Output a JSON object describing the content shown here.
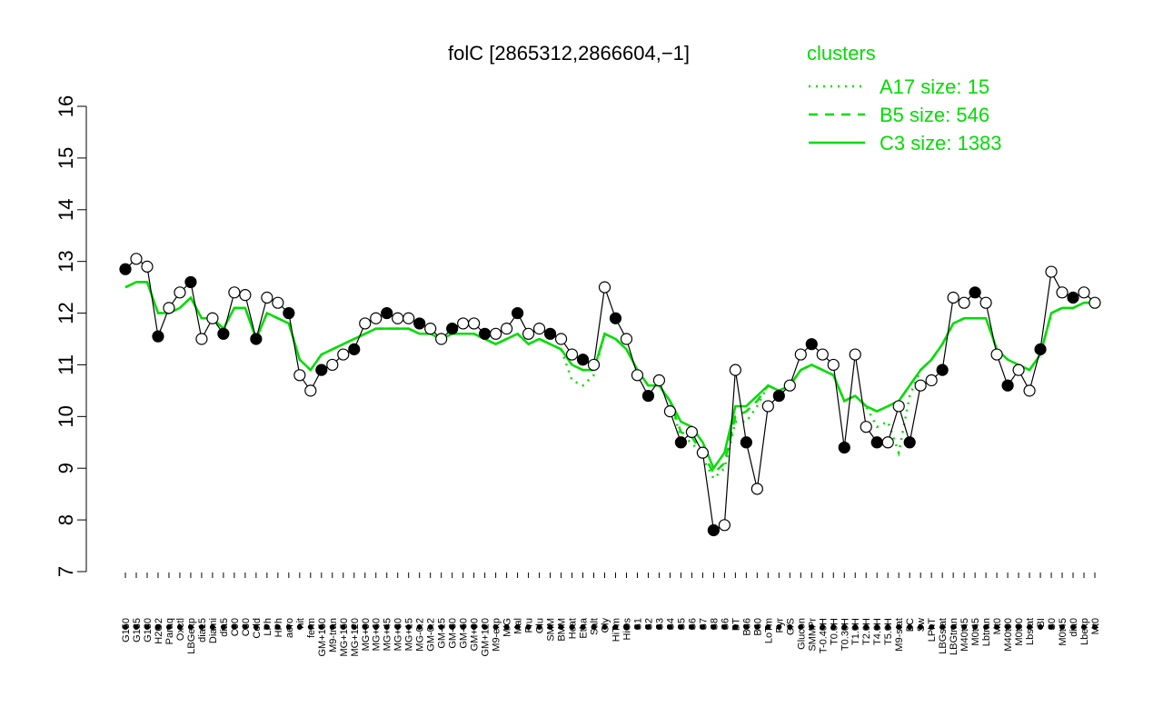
{
  "chart_data": {
    "type": "line",
    "title": "folC [2865312,2866604,−1]",
    "legend_title": "clusters",
    "categories": [
      "G150",
      "G135",
      "G180",
      "H2O2",
      "Paraq",
      "Oxctl",
      "LBGexp",
      "dia15",
      "Diami",
      "dia5",
      "C90",
      "C30",
      "Cold",
      "LPh",
      "HPh",
      "aero",
      "nit",
      "ferm",
      "GM+150",
      "M9-tran",
      "MG+150",
      "MG+120",
      "MG+90",
      "MG+60",
      "MG+45",
      "MG+30",
      "MG+15",
      "MG-0.2",
      "GM-0.2",
      "GM-15",
      "GM-30",
      "GM-60",
      "GM+90",
      "GM+120",
      "M9-exp",
      "M/G",
      "Mal",
      "Fru",
      "Glu",
      "SMM",
      "BMM",
      "Heat",
      "Etha",
      "Salt",
      "Gly",
      "HiTm",
      "HiOs",
      "S1",
      "S2",
      "S3",
      "S4",
      "S5",
      "S6",
      "S7",
      "S8",
      "S6",
      "BT",
      "B36",
      "B60",
      "LoTm",
      "Pyr",
      "G/S",
      "Glucon",
      "SMMPr",
      "T-0.40H",
      "T0.0H",
      "T0.30H",
      "T1.0H",
      "T2.0H",
      "T4.0H",
      "T5.0H",
      "M9-stat",
      "BC",
      "Sw",
      "LPhT",
      "LBGstat",
      "LBGtran",
      "M40t45",
      "M0t45",
      "Lbtran",
      "Mt0",
      "M40t90",
      "M0t90",
      "Lbstat",
      "BI",
      "S0",
      "M0t45",
      "dia0",
      "Lbexp",
      "Mt0"
    ],
    "values": [
      12.85,
      13.05,
      12.9,
      11.55,
      12.1,
      12.4,
      12.6,
      11.5,
      11.9,
      11.6,
      12.4,
      12.35,
      11.5,
      12.3,
      12.2,
      12.0,
      10.8,
      10.5,
      10.9,
      11.0,
      11.2,
      11.3,
      11.8,
      11.9,
      12.0,
      11.9,
      11.9,
      11.8,
      11.7,
      11.5,
      11.7,
      11.8,
      11.8,
      11.6,
      11.6,
      11.7,
      12.0,
      11.6,
      11.7,
      11.6,
      11.5,
      11.2,
      11.1,
      11.0,
      12.5,
      11.9,
      11.5,
      10.8,
      10.4,
      10.7,
      10.1,
      9.5,
      9.7,
      9.3,
      7.8,
      7.9,
      10.9,
      9.5,
      8.6,
      10.2,
      10.4,
      10.6,
      11.2,
      11.4,
      11.2,
      11.0,
      9.4,
      11.2,
      9.8,
      9.5,
      9.5,
      10.2,
      9.5,
      10.6,
      10.7,
      10.9,
      12.3,
      12.2,
      12.4,
      12.2,
      11.2,
      10.6,
      10.9,
      10.5,
      11.3,
      12.8,
      12.4,
      12.3,
      12.4,
      12.2
    ],
    "color": "#000000",
    "series": [
      {
        "name": "A17 size: 15",
        "color": "#00dd00",
        "dash": "dotted",
        "values": [
          12.5,
          12.6,
          12.6,
          12.0,
          12.0,
          12.1,
          12.3,
          11.9,
          11.9,
          11.7,
          12.1,
          12.1,
          11.5,
          12.0,
          11.9,
          11.8,
          11.1,
          10.9,
          11.2,
          11.3,
          11.4,
          11.5,
          11.6,
          11.7,
          11.7,
          11.7,
          11.7,
          11.6,
          11.6,
          11.5,
          11.6,
          11.6,
          11.6,
          11.5,
          11.4,
          11.5,
          11.6,
          11.4,
          11.5,
          11.4,
          11.3,
          10.7,
          10.6,
          10.8,
          11.6,
          11.5,
          11.3,
          10.9,
          10.6,
          10.6,
          10.3,
          9.6,
          9.5,
          9.2,
          8.8,
          9.0,
          9.9,
          9.9,
          10.2,
          10.6,
          10.5,
          10.6,
          10.9,
          11.0,
          10.9,
          10.8,
          10.3,
          10.4,
          10.2,
          9.8,
          9.9,
          9.3,
          10.4,
          10.9,
          11.1,
          11.4,
          11.8,
          11.9,
          11.9,
          11.9,
          11.3,
          11.1,
          11.0,
          10.9,
          11.2,
          12.0,
          12.1,
          12.1,
          12.2,
          12.2
        ]
      },
      {
        "name": "B5 size: 546",
        "color": "#00dd00",
        "dash": "dashed",
        "values": [
          12.5,
          12.6,
          12.6,
          12.0,
          12.0,
          12.1,
          12.3,
          11.9,
          11.9,
          11.7,
          12.1,
          12.1,
          11.5,
          12.0,
          11.9,
          11.8,
          11.1,
          10.9,
          11.2,
          11.3,
          11.4,
          11.5,
          11.6,
          11.7,
          11.7,
          11.7,
          11.7,
          11.6,
          11.6,
          11.5,
          11.6,
          11.6,
          11.6,
          11.5,
          11.4,
          11.5,
          11.6,
          11.4,
          11.5,
          11.4,
          11.3,
          11.0,
          10.9,
          10.9,
          11.6,
          11.5,
          11.3,
          10.9,
          10.6,
          10.6,
          10.3,
          9.7,
          9.6,
          9.3,
          8.9,
          9.1,
          10.0,
          10.1,
          10.3,
          10.6,
          10.5,
          10.6,
          10.9,
          11.0,
          10.9,
          10.8,
          10.3,
          10.4,
          10.2,
          10.1,
          10.2,
          10.3,
          10.6,
          10.9,
          11.1,
          11.4,
          11.8,
          11.9,
          11.9,
          11.9,
          11.3,
          11.1,
          11.0,
          10.9,
          11.2,
          12.0,
          12.1,
          12.1,
          12.2,
          12.2
        ]
      },
      {
        "name": "C3 size: 1383",
        "color": "#00dd00",
        "dash": "solid",
        "values": [
          12.5,
          12.6,
          12.6,
          12.0,
          12.0,
          12.1,
          12.3,
          11.9,
          11.9,
          11.7,
          12.1,
          12.1,
          11.5,
          12.0,
          11.9,
          11.8,
          11.1,
          10.9,
          11.2,
          11.3,
          11.4,
          11.5,
          11.6,
          11.7,
          11.7,
          11.7,
          11.7,
          11.6,
          11.6,
          11.5,
          11.6,
          11.6,
          11.6,
          11.5,
          11.4,
          11.5,
          11.6,
          11.4,
          11.5,
          11.4,
          11.3,
          11.0,
          10.9,
          10.9,
          11.6,
          11.5,
          11.3,
          10.9,
          10.6,
          10.6,
          10.3,
          9.9,
          9.8,
          9.5,
          9.0,
          9.3,
          10.2,
          10.2,
          10.4,
          10.6,
          10.5,
          10.6,
          10.9,
          11.0,
          10.9,
          10.8,
          10.3,
          10.4,
          10.2,
          10.1,
          10.2,
          10.3,
          10.6,
          10.9,
          11.1,
          11.4,
          11.8,
          11.9,
          11.9,
          11.9,
          11.3,
          11.1,
          11.0,
          10.9,
          11.2,
          12.0,
          12.1,
          12.1,
          12.2,
          12.2
        ]
      }
    ],
    "ylim": [
      7,
      16
    ],
    "yticks": [
      7,
      8,
      9,
      10,
      11,
      12,
      13,
      14,
      15,
      16
    ],
    "legend_position": "top-right"
  }
}
